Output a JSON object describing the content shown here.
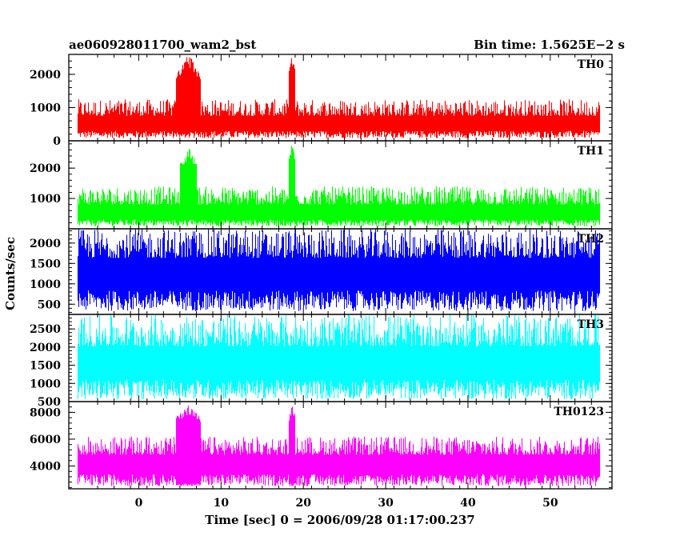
{
  "chart_data": {
    "type": "line",
    "title_left": "ae060928011700_wam2_bst",
    "title_right": "Bin time: 1.5625E−2 s",
    "xlabel": "Time [sec] 0 = 2006/09/28 01:17:00.237",
    "ylabel": "Counts/sec",
    "xlim": [
      -8.5,
      57.5
    ],
    "x_range_data": [
      -7.5,
      56
    ],
    "x_ticks": [
      0,
      10,
      20,
      30,
      40,
      50
    ],
    "x_tick_labels": [
      "0",
      "10",
      "20",
      "30",
      "40",
      "50"
    ],
    "bin_time": 0.015625,
    "panels": [
      {
        "name": "TH0",
        "color": "#ff0000",
        "ylim": [
          0,
          2600
        ],
        "y_ticks": [
          0,
          1000,
          2000
        ],
        "y_tick_labels": [
          "0",
          "1000",
          "2000"
        ],
        "baseline": 480,
        "noise_low": 80,
        "noise_high": 1250,
        "bursts": [
          {
            "x_start": 4.5,
            "x_end": 7.5,
            "peak": 2600,
            "low": 150
          },
          {
            "x_start": 18.2,
            "x_end": 19.0,
            "peak": 2600,
            "low": 400
          }
        ]
      },
      {
        "name": "TH1",
        "color": "#00ff00",
        "ylim": [
          0,
          2900
        ],
        "y_ticks": [
          1000,
          2000
        ],
        "y_tick_labels": [
          "1000",
          "2000"
        ],
        "baseline": 480,
        "noise_low": 80,
        "noise_high": 1400,
        "bursts": [
          {
            "x_start": 5.0,
            "x_end": 7.0,
            "peak": 2700,
            "low": 350
          },
          {
            "x_start": 18.2,
            "x_end": 19.0,
            "peak": 2900,
            "low": 400
          }
        ]
      },
      {
        "name": "TH2",
        "color": "#0000ff",
        "ylim": [
          250,
          2350
        ],
        "y_ticks": [
          500,
          1000,
          1500,
          2000
        ],
        "y_tick_labels": [
          "500",
          "1000",
          "1500",
          "2000"
        ],
        "baseline": 1250,
        "noise_low": 330,
        "noise_high": 2350,
        "bursts": []
      },
      {
        "name": "TH3",
        "color": "#00ffff",
        "ylim": [
          500,
          2900
        ],
        "y_ticks": [
          500,
          1000,
          1500,
          2000,
          2500
        ],
        "y_tick_labels": [
          "500",
          "1000",
          "1500",
          "2000",
          "2500"
        ],
        "baseline": 1550,
        "noise_low": 560,
        "noise_high": 2900,
        "bursts": []
      },
      {
        "name": "TH0123",
        "color": "#ff00ff",
        "ylim": [
          2300,
          8800
        ],
        "y_ticks": [
          4000,
          6000,
          8000
        ],
        "y_tick_labels": [
          "4000",
          "6000",
          "8000"
        ],
        "baseline": 4100,
        "noise_low": 2500,
        "noise_high": 6200,
        "bursts": [
          {
            "x_start": 4.5,
            "x_end": 7.5,
            "peak": 8600,
            "low": 2500
          },
          {
            "x_start": 18.2,
            "x_end": 19.0,
            "peak": 8800,
            "low": 2500
          }
        ]
      }
    ]
  }
}
